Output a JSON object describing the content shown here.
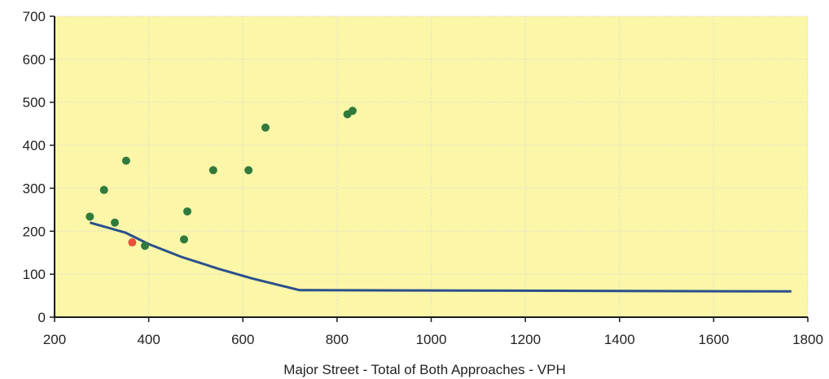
{
  "chart_data": {
    "type": "scatter",
    "title": "",
    "xlabel": "Major Street - Total of Both Approaches - VPH",
    "ylabel": "",
    "xlim": [
      200,
      1800
    ],
    "ylim": [
      0,
      700
    ],
    "x_ticks": [
      200,
      400,
      600,
      800,
      1000,
      1200,
      1400,
      1600,
      1800
    ],
    "y_ticks": [
      0,
      100,
      200,
      300,
      400,
      500,
      600,
      700
    ],
    "grid": true,
    "legend": "none",
    "colors": {
      "plot_background": "#fbf6a8",
      "grid": "#e6e2c8",
      "threshold_line": "#2a4f8c",
      "points": "#2f7a3c",
      "highlight_point": "#e8503a",
      "axis": "#1a1a1a"
    },
    "series": [
      {
        "type": "line",
        "x": [
          275,
          350,
          400,
          470,
          550,
          620,
          720,
          1765
        ],
        "y": [
          220,
          197,
          170,
          140,
          112,
          90,
          63,
          60
        ]
      },
      {
        "type": "scatter",
        "x": [
          275,
          305,
          328,
          352,
          392,
          475,
          482,
          537,
          612,
          648,
          822,
          833
        ],
        "y": [
          234,
          296,
          220,
          364,
          166,
          181,
          246,
          342,
          342,
          441,
          472,
          480
        ]
      },
      {
        "type": "scatter",
        "highlight": true,
        "x": [
          365
        ],
        "y": [
          174
        ]
      }
    ]
  }
}
